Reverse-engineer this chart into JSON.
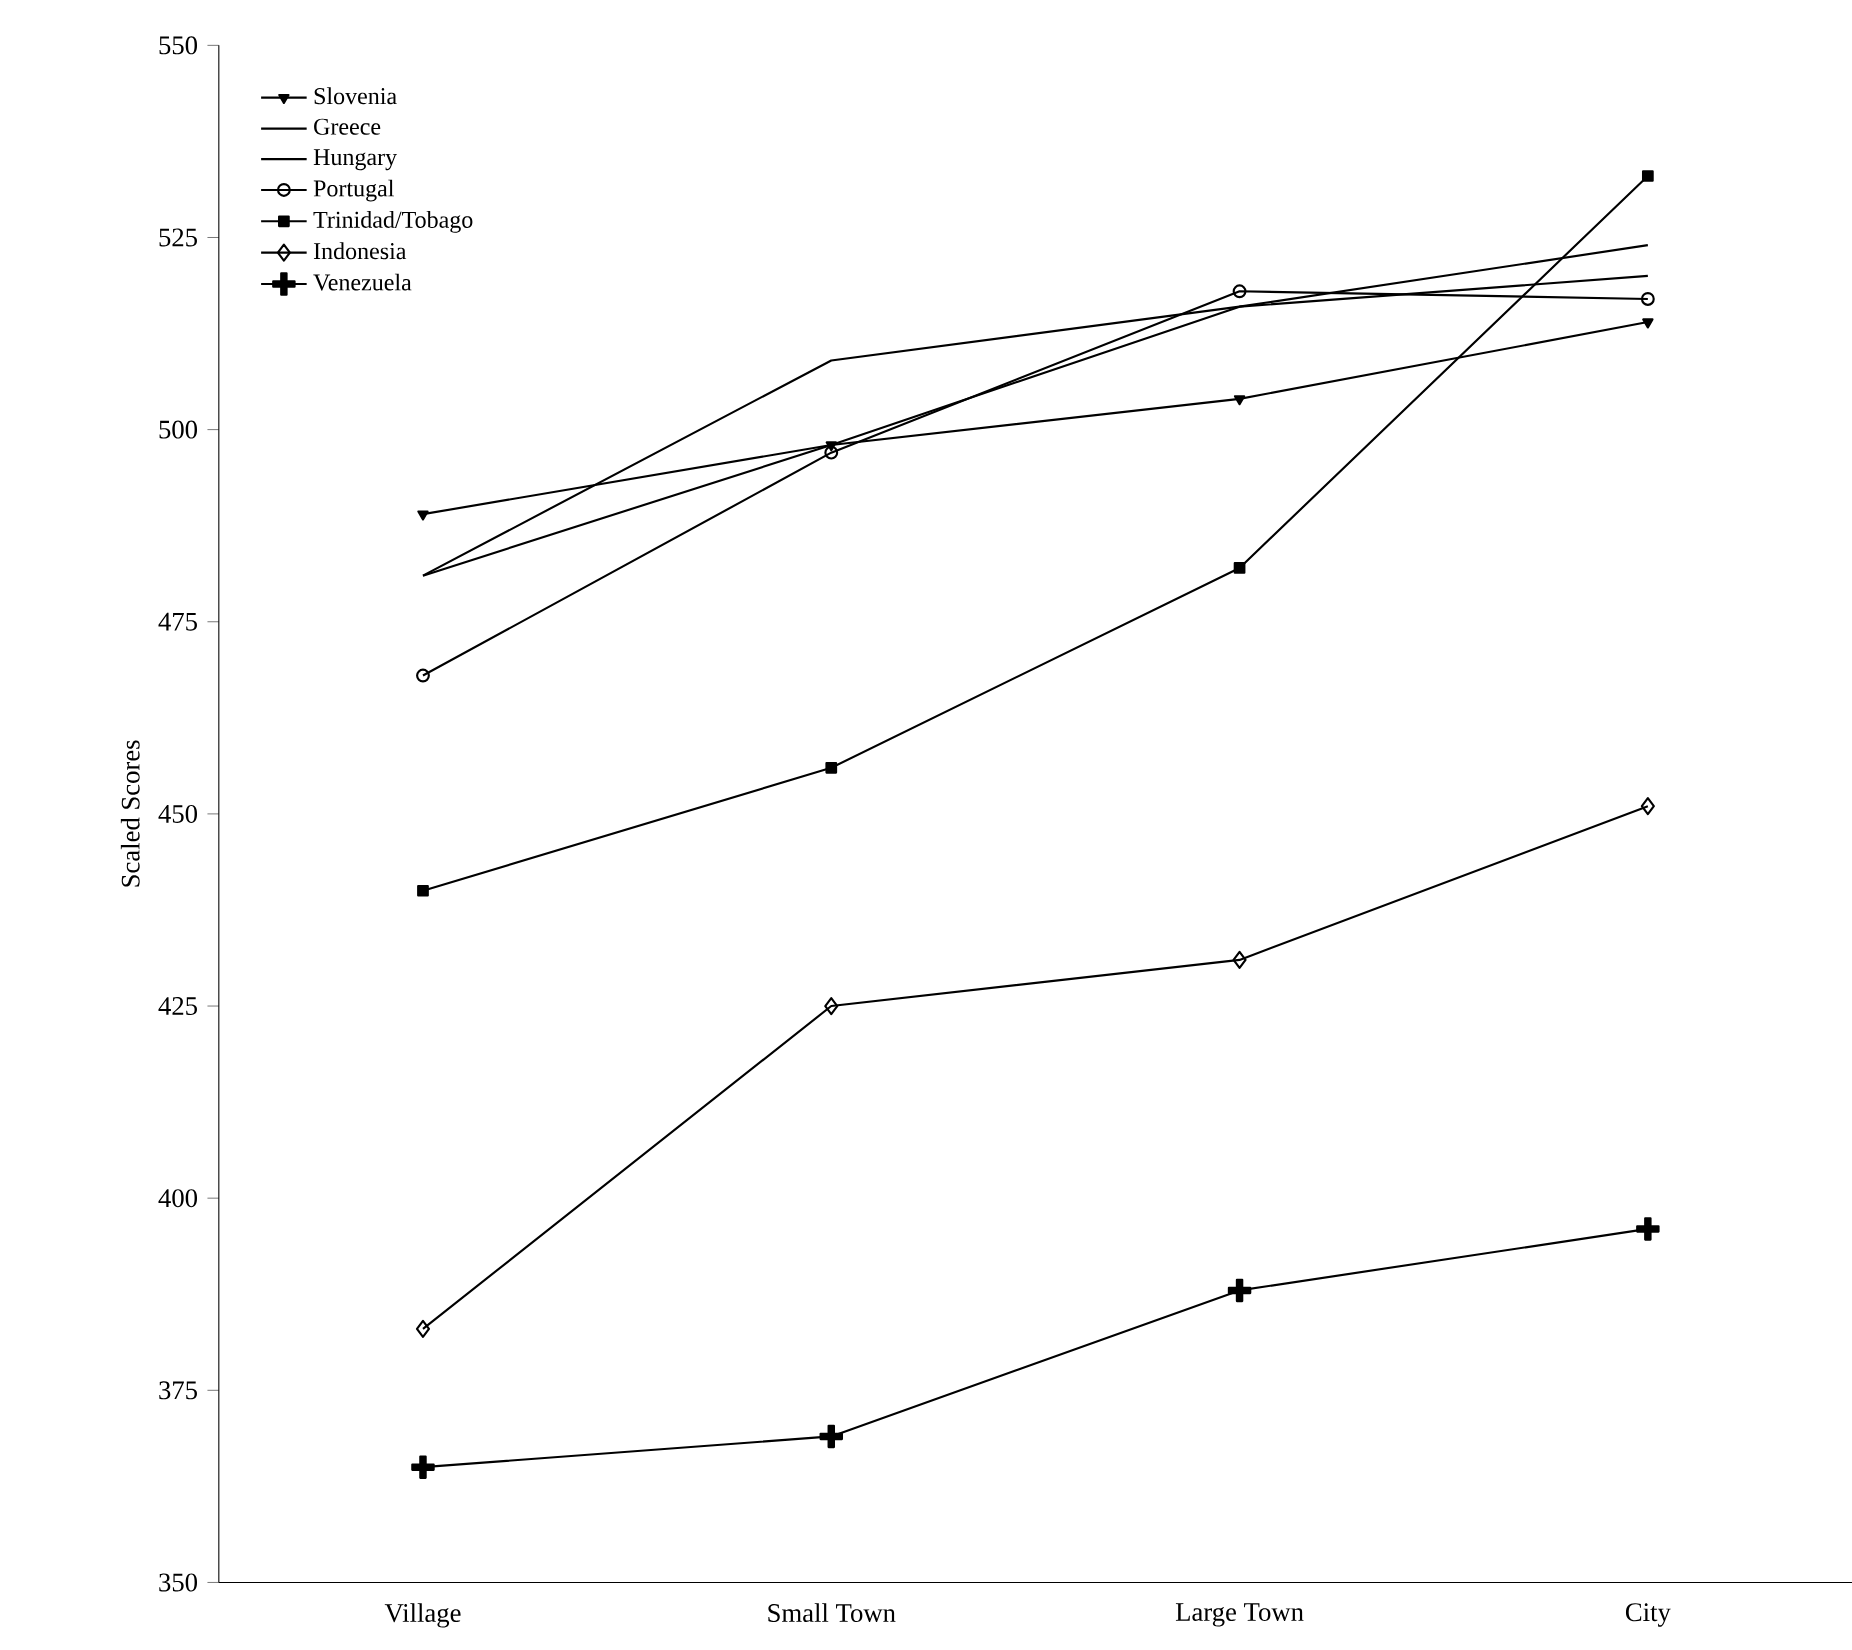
{
  "chart_data": {
    "type": "line",
    "ylabel": "Scaled Scores",
    "categories": [
      "Village",
      "Small Town",
      "Large Town",
      "City"
    ],
    "series": [
      {
        "name": "Slovenia",
        "color": "#000000",
        "marker": "triangle",
        "values": [
          489,
          498,
          504,
          514
        ]
      },
      {
        "name": "Greece",
        "color": "#000000",
        "marker": "none",
        "values": [
          481,
          498,
          516,
          524
        ]
      },
      {
        "name": "Hungary",
        "color": "#000000",
        "marker": "none",
        "values": [
          481,
          509,
          516,
          520
        ]
      },
      {
        "name": "Portugal",
        "color": "#000000",
        "marker": "circle",
        "values": [
          468,
          497,
          518,
          517
        ]
      },
      {
        "name": "Trinidad/Tobago",
        "color": "#000000",
        "marker": "square",
        "values": [
          440,
          456,
          482,
          533
        ]
      },
      {
        "name": "Indonesia",
        "color": "#000000",
        "marker": "diamond",
        "values": [
          383,
          425,
          431,
          451
        ]
      },
      {
        "name": "Venezuela",
        "color": "#000000",
        "marker": "cross",
        "values": [
          365,
          369,
          388,
          396
        ]
      }
    ],
    "ylim": [
      350,
      550
    ],
    "yticks": [
      350,
      375,
      400,
      425,
      450,
      475,
      500,
      525,
      550
    ],
    "legend": "top left",
    "grid": false,
    "line_style": "solid"
  }
}
